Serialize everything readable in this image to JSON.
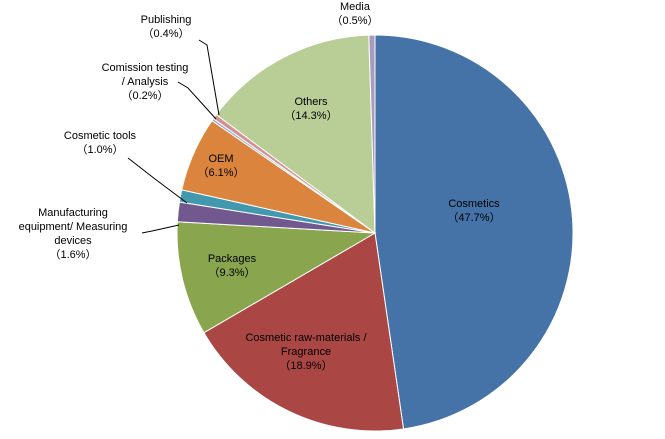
{
  "chart_data": {
    "type": "pie",
    "title": "",
    "legend": "none",
    "slices": [
      {
        "name": "Cosmetics",
        "value": 47.7,
        "label": "Cosmetics",
        "pct_label": "（47.7%）",
        "color": "#4572A7"
      },
      {
        "name": "Cosmetic raw-materials / Fragrance",
        "value": 18.9,
        "label": "Cosmetic raw-materials /\nFragrance",
        "pct_label": "（18.9%）",
        "color": "#AA4643"
      },
      {
        "name": "Packages",
        "value": 9.3,
        "label": "Packages",
        "pct_label": "（9.3%）",
        "color": "#89A54E"
      },
      {
        "name": "Manufacturing equipment/ Measuring devices",
        "value": 1.6,
        "label": "Manufacturing\nequipment/ Measuring\ndevices",
        "pct_label": "（1.6%）",
        "color": "#71588F"
      },
      {
        "name": "Cosmetic tools",
        "value": 1.0,
        "label": "Cosmetic tools",
        "pct_label": "（1.0%）",
        "color": "#4198AF"
      },
      {
        "name": "OEM",
        "value": 6.1,
        "label": "OEM",
        "pct_label": "（6.1%）",
        "color": "#DB843D"
      },
      {
        "name": "Comission testing / Analysis",
        "value": 0.2,
        "label": "Comission testing\n/ Analysis",
        "pct_label": "（0.2%）",
        "color": "#93A9CF"
      },
      {
        "name": "Publishing",
        "value": 0.4,
        "label": "Publishing",
        "pct_label": "（0.4%）",
        "color": "#D19392"
      },
      {
        "name": "Others",
        "value": 14.3,
        "label": "Others",
        "pct_label": "（14.3%）",
        "color": "#B9CD96"
      },
      {
        "name": "Media",
        "value": 0.5,
        "label": "Media",
        "pct_label": "（0.5%）",
        "color": "#A99BBD"
      }
    ]
  }
}
